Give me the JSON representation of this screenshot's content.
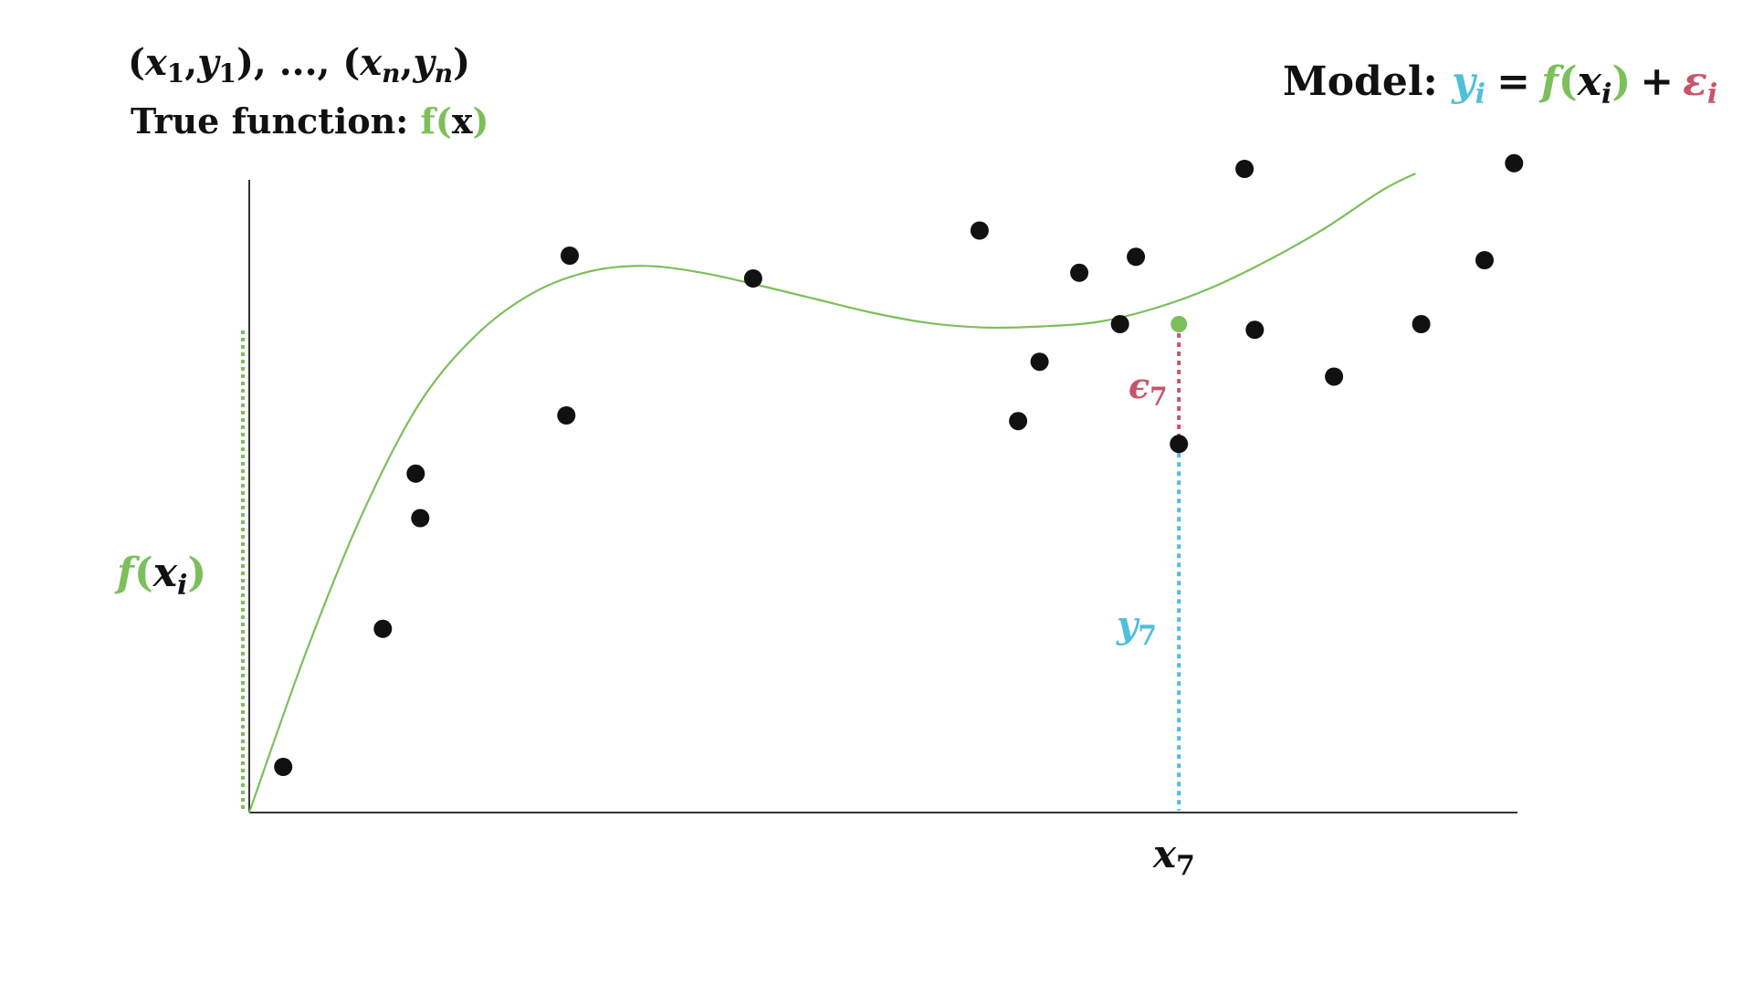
{
  "header": {
    "sample_notation": {
      "open1": "(",
      "x": "x",
      "sub1": "1",
      "comma": ",",
      "y": "y",
      "subn1": "1",
      "close1": ")",
      "sep": ", ..., ",
      "open2": "(",
      "xn": "x",
      "subn": "n",
      "comma2": ",",
      "yn": "y",
      "subnn": "n",
      "close2": ")"
    },
    "true_function": {
      "label": "True function: ",
      "f": "f",
      "open": "(",
      "arg": "x",
      "close": ")"
    }
  },
  "model": {
    "label": "Model: ",
    "y": "y",
    "y_sub": "i",
    "equals": "=",
    "f": "f",
    "open": "(",
    "x": "x",
    "x_sub": "i",
    "close": ")",
    "plus": "+",
    "eps": "ε",
    "eps_sub": "i"
  },
  "annotations": {
    "f_xi": {
      "f": "f",
      "open": "(",
      "x": "x",
      "sub": "i",
      "close": ")"
    },
    "epsilon7": {
      "sym": "ϵ",
      "sub": "7"
    },
    "y7": {
      "sym": "y",
      "sub": "7"
    },
    "x7": {
      "sym": "x",
      "sub": "7"
    }
  },
  "colors": {
    "curve": "#7cbf5b",
    "point": "#111111",
    "residual": "#c9546a",
    "observed": "#4fbfdc",
    "axis": "#333333",
    "text": "#111111"
  },
  "chart_data": {
    "type": "scatter",
    "xlim": [
      0,
      1120
    ],
    "ylim": [
      0,
      560
    ],
    "true_function_samples": [
      [
        0,
        0
      ],
      [
        50,
        140
      ],
      [
        100,
        262
      ],
      [
        150,
        358
      ],
      [
        200,
        418
      ],
      [
        250,
        455
      ],
      [
        300,
        474
      ],
      [
        350,
        479
      ],
      [
        400,
        473
      ],
      [
        450,
        462
      ],
      [
        500,
        450
      ],
      [
        550,
        438
      ],
      [
        600,
        429
      ],
      [
        650,
        425
      ],
      [
        700,
        426
      ],
      [
        750,
        430
      ],
      [
        800,
        442
      ],
      [
        850,
        460
      ],
      [
        900,
        484
      ],
      [
        950,
        512
      ],
      [
        1000,
        545
      ],
      [
        1030,
        560
      ]
    ],
    "points": [
      [
        30,
        40
      ],
      [
        118,
        161
      ],
      [
        147,
        297
      ],
      [
        151,
        258
      ],
      [
        280,
        348
      ],
      [
        283,
        488
      ],
      [
        445,
        468
      ],
      [
        645,
        510
      ],
      [
        679,
        343
      ],
      [
        698,
        395
      ],
      [
        733,
        473
      ],
      [
        769,
        428
      ],
      [
        783,
        487
      ],
      [
        821,
        323
      ],
      [
        879,
        564
      ],
      [
        888,
        423
      ],
      [
        958,
        382
      ],
      [
        1035,
        428
      ],
      [
        1091,
        484
      ],
      [
        1117,
        569
      ]
    ],
    "highlight": {
      "x": 821,
      "f": 428,
      "y": 323
    }
  }
}
